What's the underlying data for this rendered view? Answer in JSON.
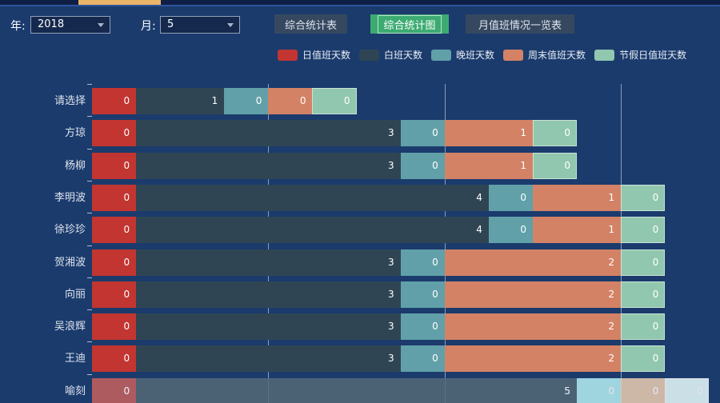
{
  "colors": {
    "background": "#1b3b6d",
    "topbar": "#0f1e45",
    "topbar_line": "#2e55a0",
    "tab_indicator": "#eab568",
    "button": "#36485f",
    "button_active": "#3cab72"
  },
  "filters": {
    "year_label": "年:",
    "year_value": "2018",
    "month_label": "月:",
    "month_value": "5"
  },
  "buttons": [
    {
      "label": "综合统计表",
      "active": false
    },
    {
      "label": "综合统计图",
      "active": true
    },
    {
      "label": "月值班情况一览表",
      "active": false
    }
  ],
  "chart_data": {
    "type": "bar",
    "orientation": "horizontal",
    "stacked": true,
    "grid": true,
    "legend_position": "top",
    "categories": [
      "请选择",
      "方琼",
      "杨柳",
      "李明波",
      "徐珍珍",
      "贺湘波",
      "向丽",
      "吴浪辉",
      "王迪",
      "喻刻"
    ],
    "series": [
      {
        "name": "日值班天数",
        "color": "#c23531",
        "values": [
          0,
          0,
          0,
          0,
          0,
          0,
          0,
          0,
          0,
          0
        ]
      },
      {
        "name": "白班天数",
        "color": "#2f4554",
        "values": [
          1,
          3,
          3,
          4,
          4,
          3,
          3,
          3,
          3,
          5
        ]
      },
      {
        "name": "晚班天数",
        "color": "#61a0a8",
        "values": [
          0,
          0,
          0,
          0,
          0,
          0,
          0,
          0,
          0,
          0
        ]
      },
      {
        "name": "周末值班天数",
        "color": "#d48265",
        "values": [
          0,
          1,
          1,
          1,
          1,
          2,
          2,
          2,
          2,
          0
        ]
      },
      {
        "name": "节假日值班天数",
        "color": "#91c7ae",
        "values": [
          0,
          0,
          0,
          0,
          0,
          0,
          0,
          0,
          0,
          0
        ]
      }
    ],
    "xlim": [
      0,
      7
    ],
    "gridlines_x": [
      2,
      4,
      6
    ],
    "dimmed_row": "喻刻"
  }
}
